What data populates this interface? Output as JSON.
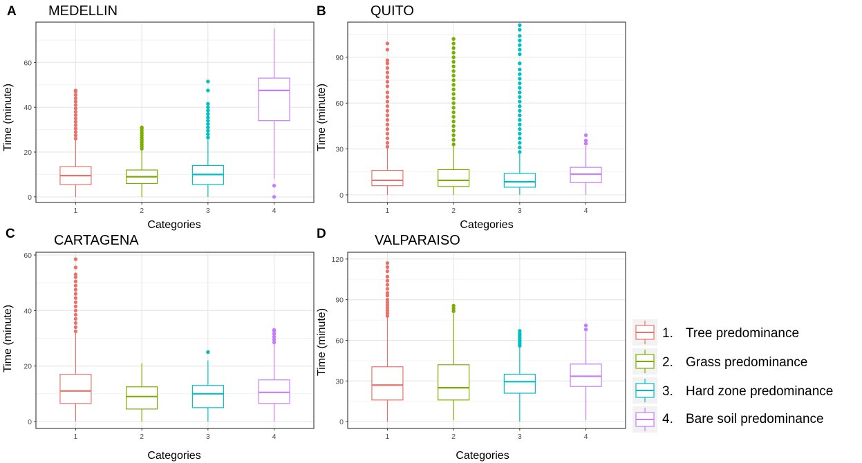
{
  "colors": {
    "tree": "#E8736C",
    "grass": "#7CAE00",
    "hard": "#00BFC4",
    "bare": "#C77CFF"
  },
  "legend": [
    {
      "num": "1.",
      "label": "Tree predominance",
      "key": "tree"
    },
    {
      "num": "2.",
      "label": "Grass predominance",
      "key": "grass"
    },
    {
      "num": "3.",
      "label": "Hard zone predominance",
      "key": "hard"
    },
    {
      "num": "4.",
      "label": "Bare soil predominance",
      "key": "bare"
    }
  ],
  "chart_data": [
    {
      "type": "box",
      "panel": "A",
      "title": "MEDELLIN",
      "xlabel": "Categories",
      "ylabel": "Time (minute)",
      "categories": [
        "1",
        "2",
        "3",
        "4"
      ],
      "yticks": [
        0,
        20,
        40,
        60
      ],
      "ylim": [
        -2.5,
        78
      ],
      "boxes": [
        {
          "category": "1",
          "whisker_low": 0,
          "q1": 5.5,
          "median": 9.5,
          "q3": 13.5,
          "whisker_high": 26,
          "outliers": [
            26,
            27.5,
            29,
            30.5,
            32,
            33.5,
            35,
            36.5,
            38,
            39.5,
            41,
            42.5,
            44,
            45.5,
            47,
            47.5
          ]
        },
        {
          "category": "2",
          "whisker_low": 0,
          "q1": 6,
          "median": 9,
          "q3": 12,
          "whisker_high": 21,
          "outliers": [
            21.5,
            22.5,
            23.5,
            24.5,
            25.5,
            26.5,
            27.5,
            28.5,
            29.5,
            30.5,
            31
          ]
        },
        {
          "category": "3",
          "whisker_low": 0,
          "q1": 5.5,
          "median": 10,
          "q3": 14,
          "whisker_high": 26,
          "outliers": [
            26.5,
            28,
            29.5,
            31,
            32.5,
            34,
            35.5,
            37,
            38.5,
            40,
            41.5,
            47.5,
            51.5
          ]
        },
        {
          "category": "4",
          "whisker_low": 8,
          "q1": 34,
          "median": 47.5,
          "q3": 53,
          "whisker_high": 75,
          "outliers": [
            0,
            5
          ]
        }
      ]
    },
    {
      "type": "box",
      "panel": "B",
      "title": "QUITO",
      "xlabel": "Categories",
      "ylabel": "Time (minute)",
      "categories": [
        "1",
        "2",
        "3",
        "4"
      ],
      "yticks": [
        0,
        30,
        60,
        90
      ],
      "ylim": [
        -5,
        113
      ],
      "boxes": [
        {
          "category": "1",
          "whisker_low": 0,
          "q1": 6,
          "median": 9.5,
          "q3": 16,
          "whisker_high": 31,
          "outliers": [
            31.5,
            34,
            37,
            40,
            43,
            46,
            49,
            52,
            55,
            58,
            61,
            64,
            67,
            71,
            74,
            77,
            80,
            83,
            86,
            88,
            95,
            99
          ]
        },
        {
          "category": "2",
          "whisker_low": 0,
          "q1": 5.5,
          "median": 9.5,
          "q3": 16.5,
          "whisker_high": 32,
          "outliers": [
            33,
            36,
            39,
            42,
            45,
            48,
            51,
            54,
            57,
            60,
            63,
            66,
            69,
            72,
            75,
            78,
            81,
            84,
            87,
            90,
            93,
            96,
            99,
            102
          ]
        },
        {
          "category": "3",
          "whisker_low": 0,
          "q1": 5,
          "median": 8.5,
          "q3": 14,
          "whisker_high": 27.5,
          "outliers": [
            28,
            31,
            34,
            37,
            40,
            43,
            46,
            49,
            52,
            55,
            58,
            61,
            64,
            67,
            70,
            73,
            76,
            79,
            82,
            86,
            92,
            95,
            98,
            101,
            104,
            108,
            111
          ]
        },
        {
          "category": "4",
          "whisker_low": 0,
          "q1": 8,
          "median": 13.5,
          "q3": 18,
          "whisker_high": 32,
          "outliers": [
            33.5,
            35.5,
            39
          ]
        }
      ]
    },
    {
      "type": "box",
      "panel": "C",
      "title": "CARTAGENA",
      "xlabel": "Categories",
      "ylabel": "Time (minute)",
      "categories": [
        "1",
        "2",
        "3",
        "4"
      ],
      "yticks": [
        0,
        20,
        40,
        60
      ],
      "ylim": [
        -2.5,
        61
      ],
      "boxes": [
        {
          "category": "1",
          "whisker_low": 0,
          "q1": 6.5,
          "median": 11,
          "q3": 17,
          "whisker_high": 32,
          "outliers": [
            32.5,
            34,
            35.5,
            37,
            38.5,
            40,
            41.5,
            43,
            44.5,
            46,
            47.5,
            49,
            50.5,
            52,
            53,
            55.5,
            58.5
          ]
        },
        {
          "category": "2",
          "whisker_low": 0,
          "q1": 4.5,
          "median": 9,
          "q3": 12.5,
          "whisker_high": 21,
          "outliers": []
        },
        {
          "category": "3",
          "whisker_low": 0,
          "q1": 5,
          "median": 10,
          "q3": 13,
          "whisker_high": 22,
          "outliers": [
            25
          ]
        },
        {
          "category": "4",
          "whisker_low": 0,
          "q1": 6.5,
          "median": 10.5,
          "q3": 15,
          "whisker_high": 28,
          "outliers": [
            28.5,
            29.5,
            30.5,
            31.5,
            32.5,
            33
          ]
        }
      ]
    },
    {
      "type": "box",
      "panel": "D",
      "title": "VALPARAISO",
      "xlabel": "Categories",
      "ylabel": "Time (minute)",
      "categories": [
        "1",
        "2",
        "3",
        "4"
      ],
      "yticks": [
        0,
        30,
        60,
        90,
        120
      ],
      "ylim": [
        -5,
        125
      ],
      "boxes": [
        {
          "category": "1",
          "whisker_low": 0,
          "q1": 16,
          "median": 27,
          "q3": 40.5,
          "whisker_high": 77,
          "outliers": [
            78,
            80,
            82,
            84,
            86,
            88,
            90,
            93,
            95,
            98,
            101,
            104,
            107,
            111,
            114,
            117
          ]
        },
        {
          "category": "2",
          "whisker_low": 1,
          "q1": 16,
          "median": 25,
          "q3": 42,
          "whisker_high": 80,
          "outliers": [
            81.5,
            83.5,
            85.5
          ]
        },
        {
          "category": "3",
          "whisker_low": 0,
          "q1": 21,
          "median": 29.5,
          "q3": 35,
          "whisker_high": 55,
          "outliers": [
            56,
            57.5,
            59,
            60.5,
            62,
            63.5,
            65,
            67
          ]
        },
        {
          "category": "4",
          "whisker_low": 1,
          "q1": 26,
          "median": 33.5,
          "q3": 42.5,
          "whisker_high": 66,
          "outliers": [
            68,
            71
          ]
        }
      ]
    }
  ]
}
